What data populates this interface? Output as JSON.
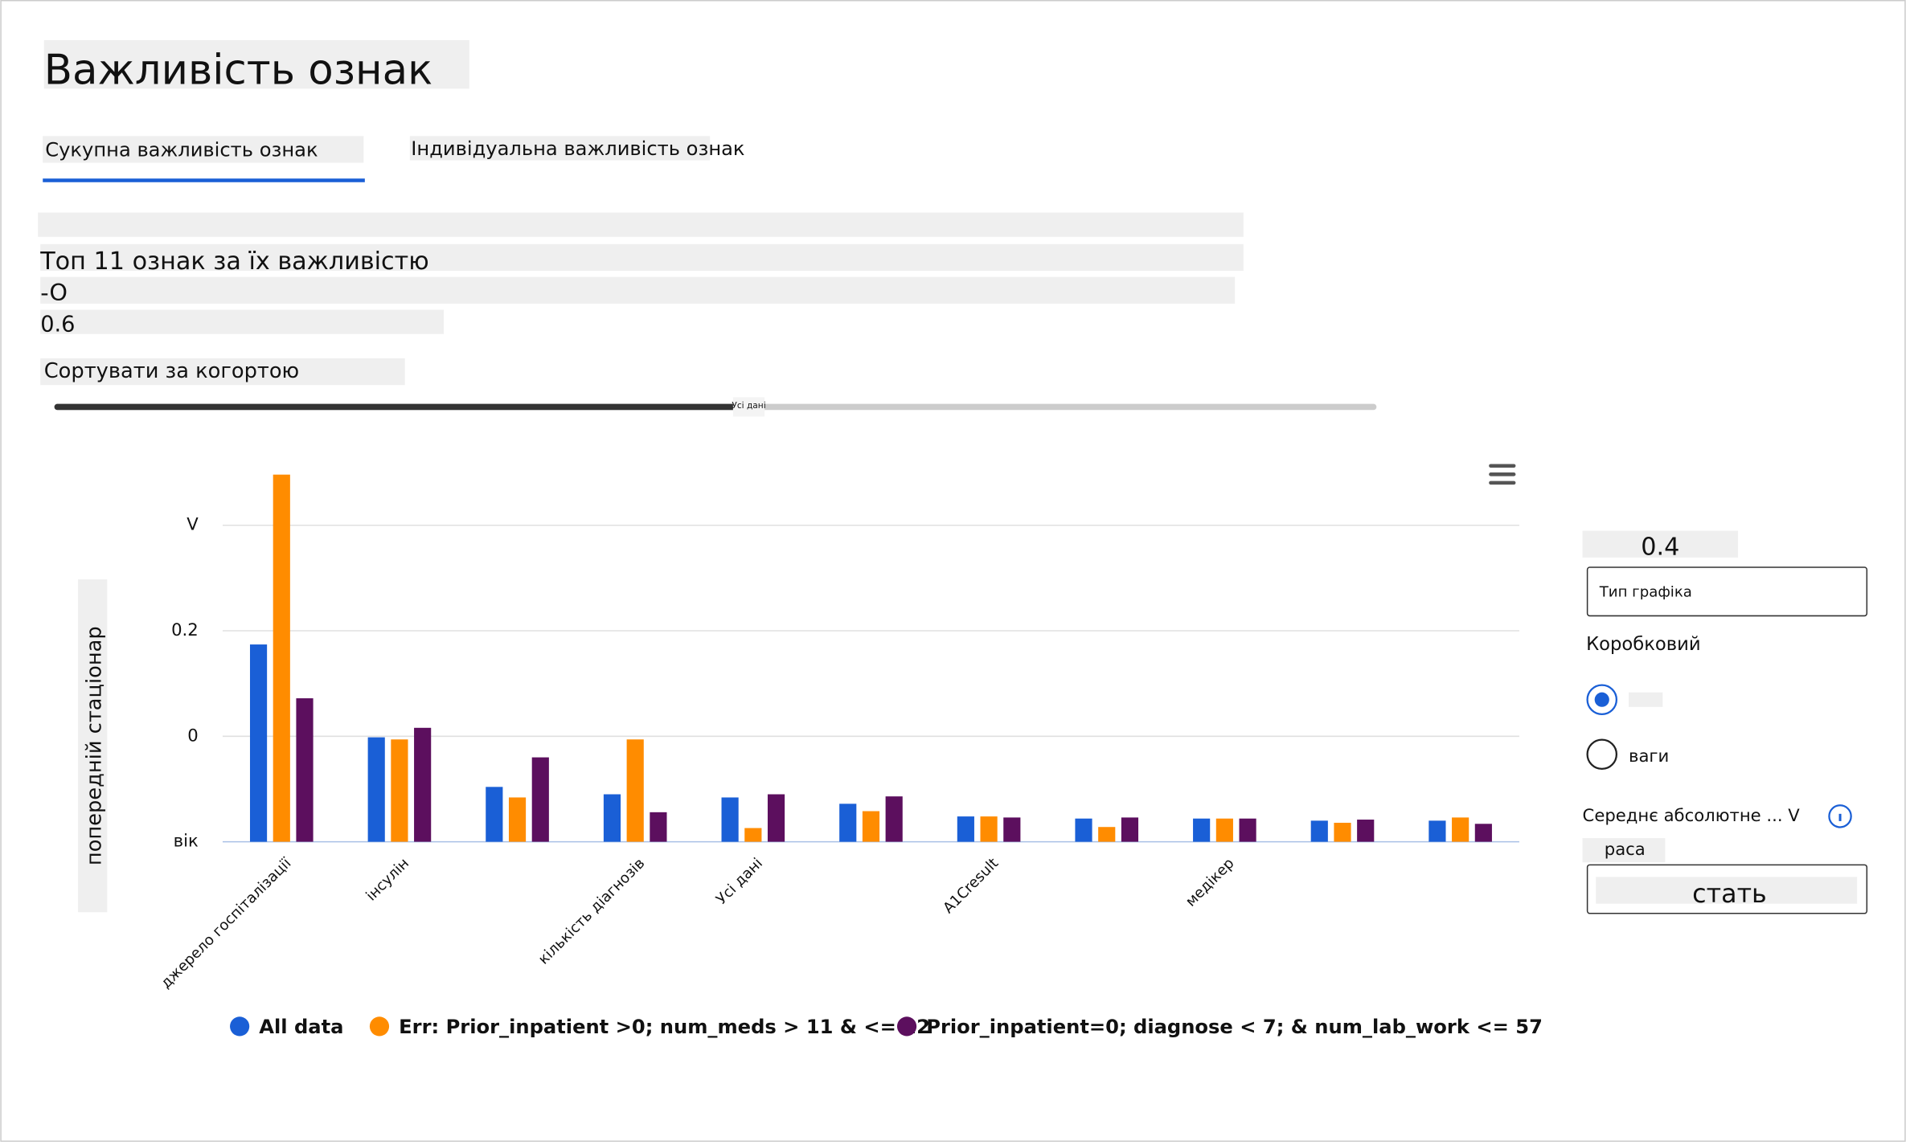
{
  "ui": {
    "title": "Важливість ознак",
    "tabs": [
      "Сукупна важливість ознак",
      "Індивідуальна важливість ознак"
    ],
    "heading": "Топ 11 ознак за їх важливістю",
    "line1": "-O",
    "line2": "0.6",
    "sort_label": "Сортувати за когортою",
    "slider_label": "Усі дані",
    "panel": {
      "value": "0.4",
      "chart_type": "Тип графіка",
      "box_option": "Коробковий",
      "radio2": "ваги",
      "metric": "Середнє абсолютне ... V",
      "feature1": "раса",
      "feature2": "стать"
    }
  },
  "chart_data": {
    "type": "bar",
    "y_label": "попередній стаціонар",
    "categories": [
      "джерело госпіталізації",
      "інсулін",
      null,
      "кількість діагнозів",
      "Усі дані",
      null,
      "A1Cresult",
      null,
      "медікер",
      null,
      null
    ],
    "series": [
      {
        "name": "All data",
        "color": "#1a5fd6",
        "values": [
          0.187,
          0.099,
          0.052,
          0.045,
          0.042,
          0.036,
          0.024,
          0.022,
          0.022,
          0.02,
          0.02
        ]
      },
      {
        "name": "Err: Prior_inpatient >0; num_meds > 11 & <= 22",
        "color": "#ff8c00",
        "values": [
          0.348,
          0.097,
          0.042,
          0.097,
          0.013,
          0.029,
          0.024,
          0.014,
          0.022,
          0.018,
          0.023
        ]
      },
      {
        "name": "Prior_inpatient=0; diagnose < 7; & num_lab_work <= 57",
        "color": "#5c0f5e",
        "values": [
          0.136,
          0.108,
          0.08,
          0.028,
          0.045,
          0.043,
          0.023,
          0.023,
          0.022,
          0.021,
          0.017
        ]
      }
    ],
    "ylim": [
      0,
      0.35
    ],
    "yticks": [
      {
        "value": 0,
        "label": "вік"
      },
      {
        "value": 0.1,
        "label": "0"
      },
      0.2,
      {
        "value": 0.3,
        "label": "V"
      }
    ],
    "grid": true
  }
}
